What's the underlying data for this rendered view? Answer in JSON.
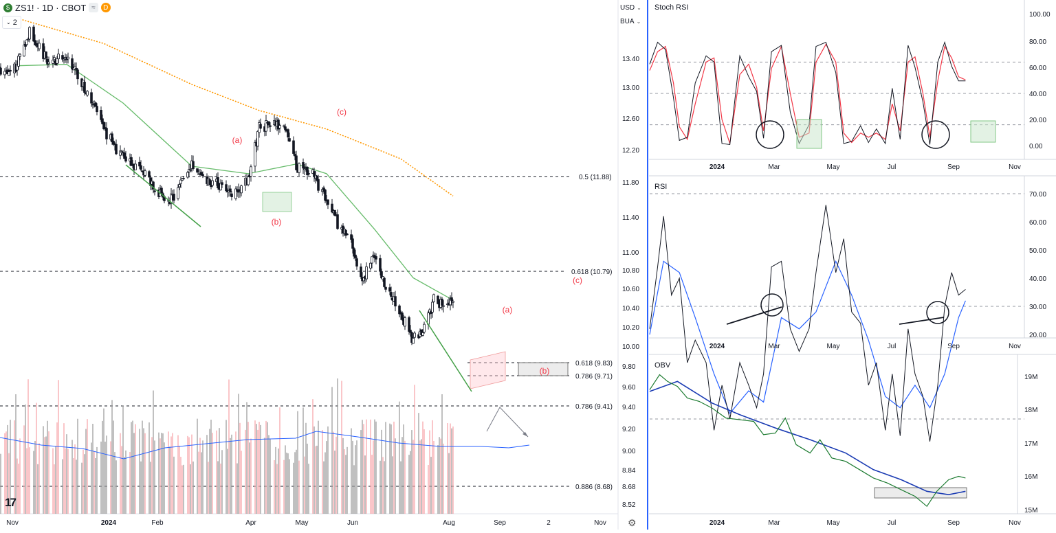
{
  "header": {
    "symbol": "ZS1! · 1D · CBOT",
    "logo_letter": "$",
    "pill_gray": "≈",
    "pill_orange": "D",
    "collapse_count": "2"
  },
  "scale_selectors": {
    "currency": "USD",
    "unit": "BUA"
  },
  "panes": {
    "stoch": "Stoch RSI",
    "rsi": "RSI",
    "obv": "OBV"
  },
  "colors": {
    "up_candle": "#ffffff",
    "down_candle": "#131722",
    "ma50": "#66bb6a",
    "ma200": "#ff9800",
    "wave_label": "#f23645",
    "fib_line": "#131722",
    "trendline_green": "#43a047",
    "stoch_k": "#131722",
    "stoch_d": "#f23645",
    "rsi_ma": "#2962ff",
    "obv_line": "#1b7a2f",
    "obv_ma": "#1a3bb3",
    "volume_up": "#f7a8ac",
    "volume_down": "#9e9e9e",
    "volume_ma": "#2962ff"
  },
  "chart_data": [
    {
      "id": "price",
      "type": "candlestick",
      "x_labels": [
        "Nov",
        "2024",
        "Feb",
        "Apr",
        "May",
        "Jun",
        "Aug",
        "Sep",
        "2",
        "Nov"
      ],
      "y_ticks": [
        "13.40",
        "13.00",
        "12.60",
        "12.20",
        "11.80",
        "11.40",
        "11.00",
        "10.80",
        "10.60",
        "10.40",
        "10.20",
        "10.00",
        "9.80",
        "9.60",
        "9.40",
        "9.20",
        "9.00",
        "8.84",
        "8.68",
        "8.52"
      ],
      "anchors": [
        {
          "date": "2023-11-06",
          "close": 13.25
        },
        {
          "date": "2023-11-17",
          "close": 13.78
        },
        {
          "date": "2023-11-30",
          "close": 13.35
        },
        {
          "date": "2023-12-14",
          "close": 13.42
        },
        {
          "date": "2023-12-29",
          "close": 12.95
        },
        {
          "date": "2024-01-10",
          "close": 12.45
        },
        {
          "date": "2024-01-24",
          "close": 12.05
        },
        {
          "date": "2024-02-08",
          "close": 11.85
        },
        {
          "date": "2024-02-26",
          "close": 11.45
        },
        {
          "date": "2024-03-14",
          "close": 11.95
        },
        {
          "date": "2024-03-28",
          "close": 11.75
        },
        {
          "date": "2024-04-11",
          "close": 11.6
        },
        {
          "date": "2024-04-24",
          "close": 11.75
        },
        {
          "date": "2024-05-02",
          "close": 12.48
        },
        {
          "date": "2024-05-20",
          "close": 12.5
        },
        {
          "date": "2024-05-29",
          "close": 11.95
        },
        {
          "date": "2024-06-10",
          "close": 11.85
        },
        {
          "date": "2024-06-24",
          "close": 11.3
        },
        {
          "date": "2024-07-08",
          "close": 10.9
        },
        {
          "date": "2024-07-16",
          "close": 10.42
        },
        {
          "date": "2024-07-25",
          "close": 10.78
        },
        {
          "date": "2024-07-31",
          "close": 10.4
        },
        {
          "date": "2024-08-13",
          "close": 9.95
        },
        {
          "date": "2024-08-22",
          "close": 9.62
        },
        {
          "date": "2024-08-29",
          "close": 9.72
        },
        {
          "date": "2024-09-06",
          "close": 10.15
        },
        {
          "date": "2024-09-12",
          "close": 10.08
        },
        {
          "date": "2024-09-20",
          "close": 10.15
        }
      ],
      "ma50": [
        {
          "date": "2023-11-06",
          "v": 13.3
        },
        {
          "date": "2023-12-14",
          "v": 13.32
        },
        {
          "date": "2024-01-24",
          "v": 12.8
        },
        {
          "date": "2024-03-14",
          "v": 11.95
        },
        {
          "date": "2024-04-24",
          "v": 11.85
        },
        {
          "date": "2024-05-29",
          "v": 11.98
        },
        {
          "date": "2024-06-20",
          "v": 11.85
        },
        {
          "date": "2024-07-25",
          "v": 11.1
        },
        {
          "date": "2024-08-22",
          "v": 10.45
        },
        {
          "date": "2024-09-20",
          "v": 10.15
        }
      ],
      "ma200": [
        {
          "date": "2023-11-06",
          "v": 13.95
        },
        {
          "date": "2024-01-10",
          "v": 13.6
        },
        {
          "date": "2024-03-14",
          "v": 13.05
        },
        {
          "date": "2024-05-02",
          "v": 12.7
        },
        {
          "date": "2024-06-20",
          "v": 12.45
        },
        {
          "date": "2024-08-13",
          "v": 12.05
        },
        {
          "date": "2024-09-20",
          "v": 11.55
        }
      ],
      "fib_levels": [
        {
          "label": "0.5 (11.88)",
          "price": 11.88
        },
        {
          "label": "0.618 (10.79)",
          "price": 10.79
        },
        {
          "label": "0.618 (9.83)",
          "price": 9.83
        },
        {
          "label": "0.786 (9.71)",
          "price": 9.71
        },
        {
          "label": "0.786 (9.41)",
          "price": 9.41
        },
        {
          "label": "0.886 (8.68)",
          "price": 8.68
        }
      ],
      "wave_labels": [
        {
          "text": "(a)",
          "date": "2024-03-07",
          "price": 12.63
        },
        {
          "text": "(b)",
          "date": "2024-04-18",
          "price": 11.1
        },
        {
          "text": "(c)",
          "date": "2024-05-22",
          "price": 12.78
        },
        {
          "text": "(c)",
          "date": "2024-09-30",
          "price": 10.72
        },
        {
          "text": "(a)",
          "date": "2024-09-06",
          "price": 10.48
        },
        {
          "text": "(b)",
          "date": "2024-09-29",
          "price": 9.75
        }
      ],
      "volume": {
        "type": "bar",
        "note": "daily volume with moving average"
      }
    },
    {
      "id": "stoch_rsi",
      "type": "line",
      "title": "Stoch RSI",
      "x_labels": [
        "2024",
        "Mar",
        "May",
        "Jul",
        "Sep",
        "Nov"
      ],
      "y_ticks": [
        "100.00",
        "80.00",
        "60.00",
        "40.00",
        "20.00",
        "0.00"
      ],
      "ylim": [
        0,
        100
      ],
      "levels": [
        80,
        50,
        20
      ],
      "k": [
        [
          "2023-11-06",
          78
        ],
        [
          "2023-11-14",
          99
        ],
        [
          "2023-11-22",
          92
        ],
        [
          "2023-11-30",
          46
        ],
        [
          "2023-12-06",
          5
        ],
        [
          "2023-12-14",
          8
        ],
        [
          "2023-12-22",
          60
        ],
        [
          "2024-01-02",
          86
        ],
        [
          "2024-01-10",
          80
        ],
        [
          "2024-01-18",
          2
        ],
        [
          "2024-01-26",
          1
        ],
        [
          "2024-02-05",
          86
        ],
        [
          "2024-02-14",
          66
        ],
        [
          "2024-02-22",
          52
        ],
        [
          "2024-02-29",
          7
        ],
        [
          "2024-03-08",
          90
        ],
        [
          "2024-03-18",
          96
        ],
        [
          "2024-03-27",
          32
        ],
        [
          "2024-04-05",
          2
        ],
        [
          "2024-04-15",
          20
        ],
        [
          "2024-04-22",
          95
        ],
        [
          "2024-05-02",
          99
        ],
        [
          "2024-05-12",
          70
        ],
        [
          "2024-05-20",
          2
        ],
        [
          "2024-05-28",
          4
        ],
        [
          "2024-06-06",
          19
        ],
        [
          "2024-06-14",
          3
        ],
        [
          "2024-06-22",
          16
        ],
        [
          "2024-07-01",
          2
        ],
        [
          "2024-07-08",
          55
        ],
        [
          "2024-07-16",
          6
        ],
        [
          "2024-07-24",
          96
        ],
        [
          "2024-07-31",
          75
        ],
        [
          "2024-08-08",
          42
        ],
        [
          "2024-08-15",
          1
        ],
        [
          "2024-08-23",
          80
        ],
        [
          "2024-08-30",
          99
        ],
        [
          "2024-09-06",
          76
        ],
        [
          "2024-09-13",
          62
        ],
        [
          "2024-09-20",
          62
        ]
      ],
      "d": [
        [
          "2023-11-06",
          72
        ],
        [
          "2023-11-14",
          90
        ],
        [
          "2023-11-22",
          95
        ],
        [
          "2023-11-30",
          60
        ],
        [
          "2023-12-06",
          18
        ],
        [
          "2023-12-14",
          6
        ],
        [
          "2023-12-22",
          40
        ],
        [
          "2024-01-02",
          80
        ],
        [
          "2024-01-10",
          84
        ],
        [
          "2024-01-18",
          25
        ],
        [
          "2024-01-26",
          2
        ],
        [
          "2024-02-05",
          68
        ],
        [
          "2024-02-14",
          78
        ],
        [
          "2024-02-22",
          56
        ],
        [
          "2024-02-29",
          14
        ],
        [
          "2024-03-08",
          74
        ],
        [
          "2024-03-18",
          95
        ],
        [
          "2024-03-27",
          50
        ],
        [
          "2024-04-05",
          8
        ],
        [
          "2024-04-15",
          12
        ],
        [
          "2024-04-22",
          80
        ],
        [
          "2024-05-02",
          97
        ],
        [
          "2024-05-12",
          80
        ],
        [
          "2024-05-20",
          12
        ],
        [
          "2024-05-28",
          3
        ],
        [
          "2024-06-06",
          12
        ],
        [
          "2024-06-14",
          8
        ],
        [
          "2024-06-22",
          12
        ],
        [
          "2024-07-01",
          6
        ],
        [
          "2024-07-08",
          40
        ],
        [
          "2024-07-16",
          14
        ],
        [
          "2024-07-24",
          80
        ],
        [
          "2024-07-31",
          85
        ],
        [
          "2024-08-08",
          50
        ],
        [
          "2024-08-15",
          8
        ],
        [
          "2024-08-23",
          62
        ],
        [
          "2024-08-30",
          95
        ],
        [
          "2024-09-06",
          84
        ],
        [
          "2024-09-13",
          66
        ],
        [
          "2024-09-20",
          63
        ]
      ]
    },
    {
      "id": "rsi",
      "type": "line",
      "title": "RSI",
      "x_labels": [
        "2024",
        "Mar",
        "May",
        "Jul",
        "Sep",
        "Nov"
      ],
      "y_ticks": [
        "70.00",
        "60.00",
        "50.00",
        "40.00",
        "30.00",
        "20.00"
      ],
      "ylim": [
        17,
        72
      ],
      "levels": [
        70,
        50,
        30
      ],
      "rsi": [
        [
          "2023-11-06",
          46
        ],
        [
          "2023-11-14",
          57
        ],
        [
          "2023-11-20",
          66
        ],
        [
          "2023-11-28",
          52
        ],
        [
          "2023-12-06",
          55
        ],
        [
          "2023-12-14",
          40
        ],
        [
          "2023-12-22",
          44
        ],
        [
          "2024-01-02",
          40
        ],
        [
          "2024-01-10",
          28
        ],
        [
          "2024-01-18",
          36
        ],
        [
          "2024-01-26",
          30
        ],
        [
          "2024-02-05",
          40
        ],
        [
          "2024-02-14",
          36
        ],
        [
          "2024-02-22",
          32
        ],
        [
          "2024-02-29",
          38
        ],
        [
          "2024-03-08",
          57
        ],
        [
          "2024-03-18",
          58
        ],
        [
          "2024-03-27",
          46
        ],
        [
          "2024-04-05",
          42
        ],
        [
          "2024-04-15",
          46
        ],
        [
          "2024-04-22",
          56
        ],
        [
          "2024-05-02",
          68
        ],
        [
          "2024-05-12",
          56
        ],
        [
          "2024-05-20",
          62
        ],
        [
          "2024-05-28",
          49
        ],
        [
          "2024-06-06",
          47
        ],
        [
          "2024-06-14",
          36
        ],
        [
          "2024-06-22",
          40
        ],
        [
          "2024-07-01",
          28
        ],
        [
          "2024-07-08",
          38
        ],
        [
          "2024-07-16",
          27
        ],
        [
          "2024-07-24",
          46
        ],
        [
          "2024-07-31",
          38
        ],
        [
          "2024-08-08",
          34
        ],
        [
          "2024-08-15",
          26
        ],
        [
          "2024-08-23",
          36
        ],
        [
          "2024-08-30",
          50
        ],
        [
          "2024-09-06",
          56
        ],
        [
          "2024-09-13",
          52
        ],
        [
          "2024-09-20",
          53
        ]
      ],
      "ma": [
        [
          "2023-11-06",
          45
        ],
        [
          "2023-11-20",
          58
        ],
        [
          "2023-12-06",
          56
        ],
        [
          "2023-12-22",
          48
        ],
        [
          "2024-01-10",
          38
        ],
        [
          "2024-01-26",
          31
        ],
        [
          "2024-02-14",
          35
        ],
        [
          "2024-02-29",
          33
        ],
        [
          "2024-03-18",
          48
        ],
        [
          "2024-04-05",
          46
        ],
        [
          "2024-04-22",
          49
        ],
        [
          "2024-05-12",
          58
        ],
        [
          "2024-05-28",
          52
        ],
        [
          "2024-06-14",
          44
        ],
        [
          "2024-07-01",
          34
        ],
        [
          "2024-07-16",
          32
        ],
        [
          "2024-07-31",
          36
        ],
        [
          "2024-08-15",
          32
        ],
        [
          "2024-08-30",
          38
        ],
        [
          "2024-09-13",
          48
        ],
        [
          "2024-09-20",
          51
        ]
      ]
    },
    {
      "id": "obv",
      "type": "line",
      "title": "OBV",
      "x_labels": [
        "2024",
        "Mar",
        "May",
        "Jul",
        "Sep",
        "Nov"
      ],
      "y_ticks": [
        "19M",
        "18M",
        "17M",
        "16M",
        "15M"
      ],
      "ylim": [
        14.9,
        19.3
      ],
      "obv": [
        [
          "2023-11-06",
          18.6
        ],
        [
          "2023-11-16",
          19.05
        ],
        [
          "2023-11-24",
          18.85
        ],
        [
          "2023-12-04",
          18.7
        ],
        [
          "2023-12-14",
          18.35
        ],
        [
          "2023-12-26",
          18.25
        ],
        [
          "2024-01-08",
          18.05
        ],
        [
          "2024-01-22",
          17.75
        ],
        [
          "2024-02-05",
          17.7
        ],
        [
          "2024-02-19",
          17.65
        ],
        [
          "2024-02-29",
          17.25
        ],
        [
          "2024-03-12",
          17.3
        ],
        [
          "2024-03-22",
          17.75
        ],
        [
          "2024-04-02",
          16.95
        ],
        [
          "2024-04-16",
          16.7
        ],
        [
          "2024-04-26",
          17.1
        ],
        [
          "2024-05-08",
          16.55
        ],
        [
          "2024-05-22",
          16.45
        ],
        [
          "2024-06-05",
          16.2
        ],
        [
          "2024-06-19",
          15.95
        ],
        [
          "2024-07-03",
          15.8
        ],
        [
          "2024-07-17",
          15.6
        ],
        [
          "2024-07-31",
          15.4
        ],
        [
          "2024-08-12",
          15.1
        ],
        [
          "2024-08-22",
          15.55
        ],
        [
          "2024-09-03",
          15.9
        ],
        [
          "2024-09-13",
          16.0
        ],
        [
          "2024-09-20",
          15.95
        ]
      ],
      "ma": [
        [
          "2023-11-06",
          18.55
        ],
        [
          "2023-12-04",
          18.85
        ],
        [
          "2024-01-08",
          18.2
        ],
        [
          "2024-02-05",
          17.85
        ],
        [
          "2024-03-12",
          17.45
        ],
        [
          "2024-04-16",
          17.1
        ],
        [
          "2024-05-22",
          16.7
        ],
        [
          "2024-06-19",
          16.2
        ],
        [
          "2024-07-17",
          15.9
        ],
        [
          "2024-08-12",
          15.55
        ],
        [
          "2024-09-03",
          15.45
        ],
        [
          "2024-09-20",
          15.55
        ]
      ]
    }
  ]
}
